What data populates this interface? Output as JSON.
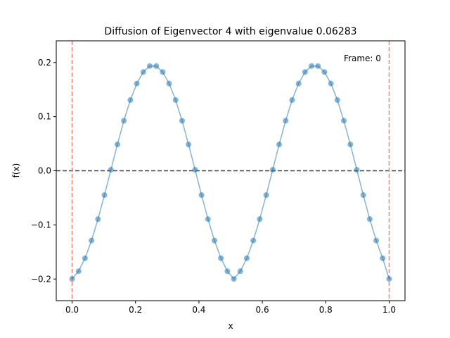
{
  "chart_data": {
    "type": "line",
    "title": "Diffusion of Eigenvector 4 with eigenvalue 0.06283",
    "xlabel": "x",
    "ylabel": "f(x)",
    "annotation": "Frame: 0",
    "xlim": [
      -0.05,
      1.05
    ],
    "ylim": [
      -0.24,
      0.24
    ],
    "xticks": [
      0.0,
      0.2,
      0.4,
      0.6,
      0.8,
      1.0
    ],
    "xtick_labels": [
      "0.0",
      "0.2",
      "0.4",
      "0.6",
      "0.8",
      "1.0"
    ],
    "yticks": [
      -0.2,
      -0.1,
      0.0,
      0.1,
      0.2
    ],
    "ytick_labels": [
      "−0.2",
      "−0.1",
      "0.0",
      "0.1",
      "0.2"
    ],
    "grid": false,
    "colors": {
      "series": "#1f77b4",
      "boundary": "#fa8072",
      "zero_line": "#404040"
    },
    "reference_lines": {
      "horizontal_y": 0.0,
      "vertical_x": [
        0.0,
        1.0
      ]
    },
    "series": [
      {
        "style": "line-with-markers",
        "x": [
          0.0,
          0.0204,
          0.0408,
          0.0612,
          0.0816,
          0.102,
          0.1224,
          0.1429,
          0.1633,
          0.1837,
          0.2041,
          0.2245,
          0.2449,
          0.2653,
          0.2857,
          0.3061,
          0.3265,
          0.3469,
          0.3673,
          0.3878,
          0.4082,
          0.4286,
          0.449,
          0.4694,
          0.4898,
          0.5102,
          0.5306,
          0.551,
          0.5714,
          0.5918,
          0.6122,
          0.6327,
          0.6531,
          0.6735,
          0.6939,
          0.7143,
          0.7347,
          0.7551,
          0.7755,
          0.7959,
          0.8163,
          0.8367,
          0.8571,
          0.8776,
          0.898,
          0.9184,
          0.9388,
          0.9592,
          0.9796,
          1.0
        ],
        "y": [
          -0.1998,
          -0.1856,
          -0.1616,
          -0.1289,
          -0.0893,
          -0.0449,
          0.0019,
          0.0486,
          0.0924,
          0.1307,
          0.1611,
          0.1824,
          0.1934,
          0.1934,
          0.1824,
          0.1611,
          0.1307,
          0.0924,
          0.0486,
          0.0019,
          -0.0449,
          -0.0893,
          -0.1289,
          -0.1616,
          -0.1856,
          -0.1998,
          -0.1856,
          -0.1616,
          -0.1289,
          -0.0893,
          -0.0449,
          0.0019,
          0.0486,
          0.0924,
          0.1307,
          0.1611,
          0.1824,
          0.1934,
          0.1934,
          0.1824,
          0.1611,
          0.1307,
          0.0924,
          0.0486,
          0.0019,
          -0.0449,
          -0.0893,
          -0.1289,
          -0.1616,
          -0.1998
        ]
      }
    ]
  }
}
